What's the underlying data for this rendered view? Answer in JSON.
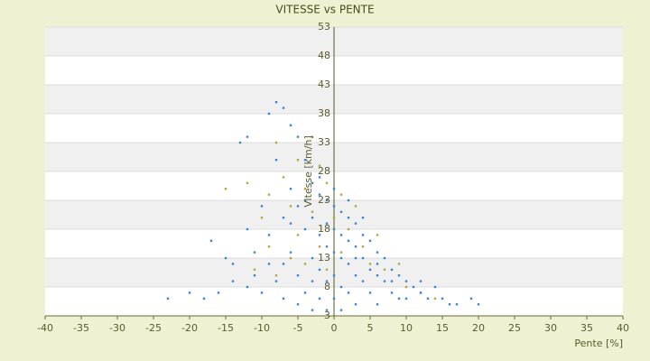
{
  "chart_data": {
    "type": "scatter",
    "title": "VITESSE vs PENTE",
    "x_label": "Pente [%]",
    "y_label": "Vitesse [km/h]",
    "xlim": [
      -40,
      40
    ],
    "xticks": [
      -40,
      -35,
      -30,
      -25,
      -20,
      -15,
      -10,
      -5,
      0,
      5,
      10,
      15,
      20,
      25,
      30,
      35,
      40
    ],
    "ylim": [
      3,
      53
    ],
    "yticks": [
      3,
      8,
      13,
      18,
      23,
      28,
      33,
      38,
      43,
      48,
      53
    ],
    "grid": true,
    "series": [
      {
        "color": "#b5a642",
        "x": [
          -15,
          -12,
          -10,
          -9,
          -8,
          -8,
          -7,
          -6,
          -6,
          -5,
          -5,
          -4,
          -4,
          -3,
          -3,
          -2,
          -2,
          -1,
          -1,
          0,
          1,
          1,
          2,
          3,
          4,
          5,
          6,
          7,
          9,
          10,
          12,
          14,
          -11,
          -9
        ],
        "values": [
          25,
          26,
          20,
          15,
          33,
          10,
          27,
          22,
          13,
          30,
          17,
          25,
          12,
          34,
          21,
          29,
          15,
          26,
          11,
          20,
          24,
          14,
          18,
          22,
          15,
          12,
          17,
          11,
          12,
          8,
          7,
          6,
          11,
          24
        ]
      },
      {
        "color": "#3a86d0",
        "x": [
          -23,
          -20,
          -18,
          -17,
          -15,
          -14,
          -13,
          -12,
          -12,
          -11,
          -10,
          -10,
          -9,
          -9,
          -8,
          -8,
          -8,
          -7,
          -7,
          -7,
          -6,
          -6,
          -6,
          -5,
          -5,
          -5,
          -5,
          -4,
          -4,
          -4,
          -3,
          -3,
          -3,
          -3,
          -2,
          -2,
          -2,
          -2,
          -1,
          -1,
          -1,
          -1,
          -1,
          0,
          0,
          0,
          0,
          0,
          1,
          1,
          1,
          1,
          1,
          2,
          2,
          2,
          2,
          3,
          3,
          3,
          3,
          4,
          4,
          4,
          5,
          5,
          5,
          6,
          6,
          6,
          7,
          7,
          8,
          8,
          9,
          9,
          10,
          10,
          11,
          12,
          13,
          14,
          15,
          16,
          17,
          19,
          20,
          -16,
          -14,
          -11,
          -9,
          -6,
          -4,
          -2,
          0,
          2,
          4,
          -12,
          -7,
          -3,
          3,
          6,
          8,
          12
        ],
        "values": [
          6,
          7,
          6,
          16,
          13,
          12,
          33,
          34,
          8,
          10,
          22,
          7,
          38,
          12,
          40,
          30,
          9,
          39,
          20,
          6,
          36,
          25,
          14,
          34,
          22,
          10,
          5,
          30,
          18,
          7,
          26,
          20,
          13,
          4,
          24,
          17,
          11,
          6,
          23,
          19,
          15,
          9,
          4,
          22,
          18,
          14,
          10,
          6,
          21,
          17,
          13,
          8,
          4,
          20,
          16,
          12,
          7,
          19,
          15,
          10,
          5,
          17,
          13,
          9,
          16,
          11,
          7,
          14,
          10,
          5,
          13,
          9,
          11,
          7,
          10,
          6,
          9,
          6,
          8,
          7,
          6,
          8,
          6,
          5,
          5,
          6,
          5,
          7,
          9,
          14,
          17,
          19,
          23,
          27,
          25,
          23,
          20,
          18,
          12,
          9,
          13,
          12,
          9,
          9
        ]
      }
    ]
  }
}
